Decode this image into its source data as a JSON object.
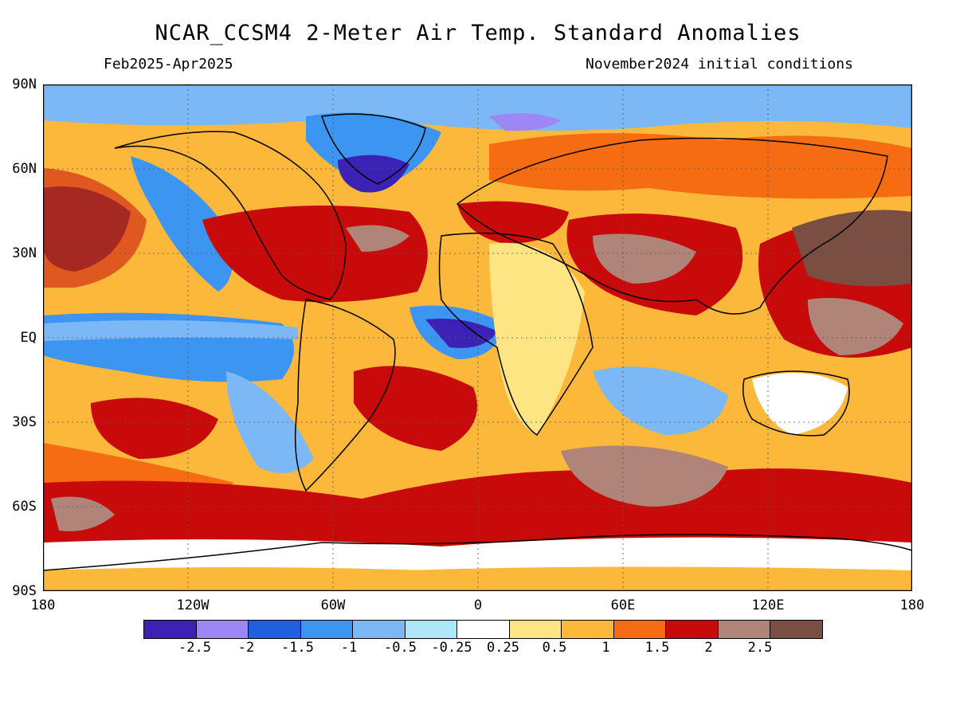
{
  "header": {
    "title": "NCAR_CCSM4 2-Meter Air Temp. Standard Anomalies",
    "period": "Feb2025-Apr2025",
    "init": "November2024 initial conditions"
  },
  "axes": {
    "lat_labels": [
      "90N",
      "60N",
      "30N",
      "EQ",
      "30S",
      "60S",
      "90S"
    ],
    "lon_labels": [
      "180",
      "120W",
      "60W",
      "0",
      "60E",
      "120E",
      "180"
    ]
  },
  "legend": {
    "colors": [
      "#3b22b5",
      "#9d87f5",
      "#2060e0",
      "#3c95f0",
      "#7bb8f5",
      "#aee7f8",
      "#ffffff",
      "#fde584",
      "#fbb83a",
      "#f56c12",
      "#c80a0a",
      "#b08478",
      "#7a4e42"
    ],
    "labels": [
      "-2.5",
      "-2",
      "-1.5",
      "-1",
      "-0.5",
      "-0.25",
      "0.25",
      "0.5",
      "1",
      "1.5",
      "2",
      "2.5"
    ]
  }
}
